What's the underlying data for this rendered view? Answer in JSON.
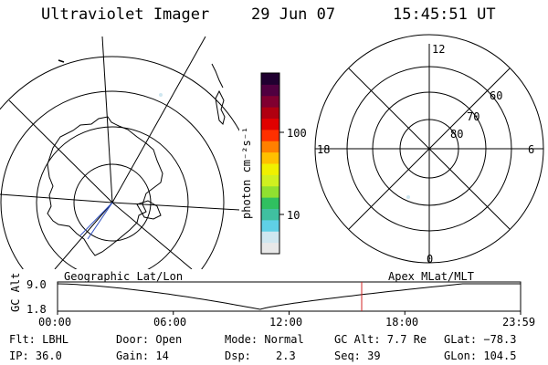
{
  "header": {
    "instrument": "Ultraviolet Imager",
    "date": "29 Jun 07",
    "time": "15:45:51 UT"
  },
  "colorbar": {
    "unit_label": "photon cm⁻²s⁻¹",
    "ticks": [
      {
        "label": "100",
        "value": 100
      },
      {
        "label": "10",
        "value": 10
      }
    ],
    "colors": [
      "#e8e8e8",
      "#cfe7f0",
      "#5fd0e6",
      "#40c0a0",
      "#30c060",
      "#90e030",
      "#d0f020",
      "#f0f000",
      "#ffc000",
      "#ff8000",
      "#ff3000",
      "#e00000",
      "#b00010",
      "#800030",
      "#500040",
      "#200030"
    ]
  },
  "left_panel": {
    "projection_label": "Geographic Lat/Lon"
  },
  "right_panel": {
    "projection_label": "Apex MLat/MLT",
    "mlt_labels": {
      "top": "12",
      "bottom": "0",
      "left": "18",
      "right": "6"
    },
    "lat_labels": [
      "60",
      "70",
      "80"
    ]
  },
  "altitude_plot": {
    "ylabel": "GC Alt",
    "y_ticks": [
      "9.0",
      "1.8"
    ],
    "y_range": [
      1.8,
      9.0
    ],
    "x_ticks": [
      "00:00",
      "06:00",
      "12:00",
      "18:00",
      "23:59"
    ],
    "x_range_hours": [
      0,
      24
    ],
    "current_time_hours": 15.764,
    "current_marker_color": "#d02020"
  },
  "info": {
    "filter": "Flt: LBHL",
    "door": "Door: Open",
    "mode": "Mode: Normal",
    "gc_alt": "GC Alt: 7.7 Re",
    "glat": "GLat: −78.3",
    "ip": "IP: 36.0",
    "gain": "Gain: 14",
    "dsp_label": "Dsp:",
    "dsp_value": "2.3",
    "seq": "Seq: 39",
    "glon": "GLon: 104.5"
  }
}
